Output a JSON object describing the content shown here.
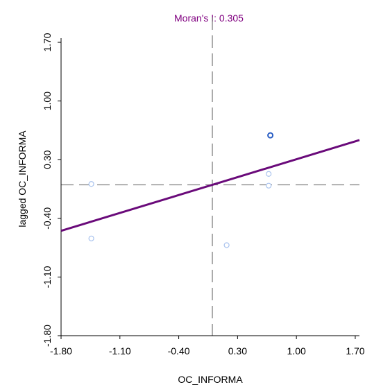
{
  "chart_data": {
    "type": "scatter",
    "title": "Moran's I: 0.305",
    "xlabel": "OC_INFORMA",
    "ylabel": "lagged OC_INFORMA",
    "xlim": [
      -1.8,
      1.75
    ],
    "ylim": [
      -1.8,
      1.75
    ],
    "x_ticks": [
      "-1.80",
      "-1.10",
      "-0.40",
      "0.30",
      "1.00",
      "1.70"
    ],
    "y_ticks": [
      "-1.80",
      "-1.10",
      "-0.40",
      "0.30",
      "1.00",
      "1.70"
    ],
    "x_tick_values": [
      -1.8,
      -1.1,
      -0.4,
      0.3,
      1.0,
      1.7
    ],
    "y_tick_values": [
      -1.8,
      -1.1,
      -0.4,
      0.3,
      1.0,
      1.7
    ],
    "points": [
      {
        "x": -1.44,
        "y": 0.01
      },
      {
        "x": -1.44,
        "y": -0.64
      },
      {
        "x": 0.17,
        "y": -0.72
      },
      {
        "x": 0.69,
        "y": 0.59
      },
      {
        "x": 0.67,
        "y": 0.13
      },
      {
        "x": 0.67,
        "y": -0.01
      }
    ],
    "highlighted_point_index": 3,
    "mean_x": 0.0,
    "mean_y": 0.0,
    "regression": {
      "slope": 0.305,
      "intercept": 0.0
    },
    "grid": false,
    "colors": {
      "title": "#800080",
      "regression": "#6a0a7a",
      "point": "#a9c3ee",
      "highlight": "#2a5ec4",
      "mean_lines": "#808080",
      "axes": "#000000"
    }
  }
}
